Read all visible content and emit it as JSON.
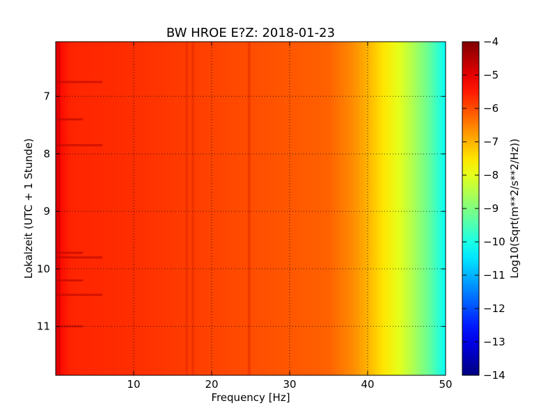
{
  "chart_data": {
    "type": "heatmap",
    "title": "BW HROE E?Z: 2018-01-23",
    "xlabel": "Frequency [Hz]",
    "ylabel": "Lokalzeit (UTC + 1 Stunde)",
    "xlim": [
      0,
      50
    ],
    "ylim": [
      11.85,
      6.05
    ],
    "y_inverted": true,
    "xticks": [
      10,
      20,
      30,
      40,
      50
    ],
    "yticks": [
      7,
      8,
      9,
      10,
      11
    ],
    "grid": true,
    "colormap": "jet",
    "colorbar": {
      "label": "Log10(Sqrt(m**2/s**2/Hz))",
      "range": [
        -14,
        -4
      ],
      "ticks": [
        -4,
        -5,
        -6,
        -7,
        -8,
        -9,
        -10,
        -11,
        -12,
        -13,
        -14
      ]
    },
    "level_profile": {
      "description_units": "log10 amplitude vs frequency (Hz), approx.",
      "frequency": [
        0,
        2,
        10,
        35,
        38,
        40,
        42,
        44,
        46,
        48,
        50
      ],
      "level": [
        -5.2,
        -5.6,
        -5.7,
        -6.2,
        -6.6,
        -7.0,
        -7.5,
        -8.0,
        -8.6,
        -9.3,
        -10.2
      ]
    },
    "features": {
      "vertical_bands_hz": [
        16.8,
        17.6,
        24.8
      ],
      "horizontal_events_hours": [
        6.75,
        7.4,
        7.85,
        9.72,
        9.8,
        10.2,
        10.45,
        11.0
      ]
    }
  }
}
